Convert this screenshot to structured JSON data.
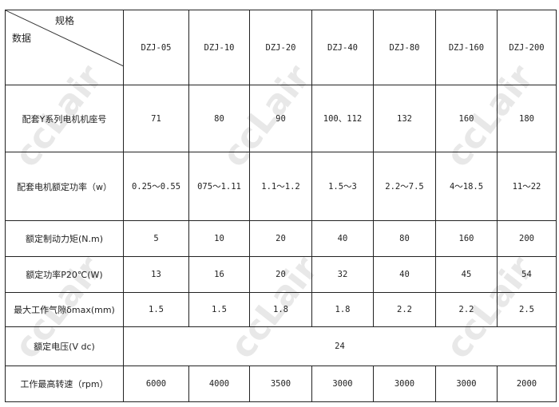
{
  "header": {
    "corner_top": "规格",
    "corner_bottom": "数据",
    "models": [
      "DZJ-05",
      "DZJ-10",
      "DZJ-20",
      "DZJ-40",
      "DZJ-80",
      "DZJ-160",
      "DZJ-200"
    ]
  },
  "rows": [
    {
      "label": "配套Y系列电机机座号",
      "values": [
        "71",
        "80",
        "90",
        "100、112",
        "132",
        "160",
        "180"
      ]
    },
    {
      "label": "配套电机额定功率（w）",
      "values": [
        "0.25～0.55",
        "075～1.11",
        "1.1～1.2",
        "1.5～3",
        "2.2～7.5",
        "4～18.5",
        "11～22"
      ]
    },
    {
      "label": "额定制动力矩(N.m)",
      "values": [
        "5",
        "10",
        "20",
        "40",
        "80",
        "160",
        "200"
      ]
    },
    {
      "label": "额定功率P20℃(W)",
      "values": [
        "13",
        "16",
        "20",
        "32",
        "40",
        "45",
        "54"
      ]
    },
    {
      "label": "最大工作气隙δmax(mm)",
      "values": [
        "1.5",
        "1.5",
        "1.8",
        "1.8",
        "2.2",
        "2.2",
        "2.5"
      ]
    },
    {
      "label": "额定电压(V dc)",
      "merged_value": "24"
    },
    {
      "label": "工作最高转速（rpm）",
      "values": [
        "6000",
        "4000",
        "3500",
        "3000",
        "3000",
        "3000",
        "2000"
      ]
    }
  ],
  "watermark": "ccLair"
}
